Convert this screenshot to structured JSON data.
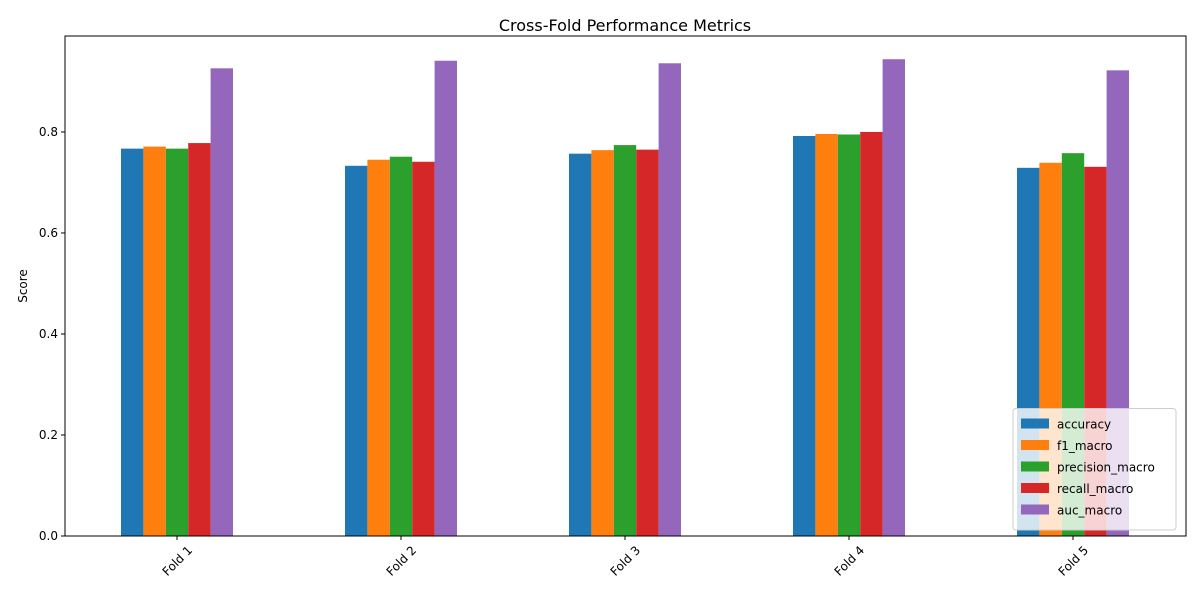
{
  "chart_data": {
    "type": "bar",
    "title": "Cross-Fold Performance Metrics",
    "xlabel": "",
    "ylabel": "Score",
    "categories": [
      "Fold 1",
      "Fold 2",
      "Fold 3",
      "Fold 4",
      "Fold 5"
    ],
    "ylim": [
      0,
      0.99
    ],
    "yticks": [
      0.0,
      0.2,
      0.4,
      0.6,
      0.8
    ],
    "ytick_labels": [
      "0.0",
      "0.2",
      "0.4",
      "0.6",
      "0.8"
    ],
    "grid": false,
    "legend_position": "bottom-right",
    "series": [
      {
        "name": "accuracy",
        "color": "#1f77b4",
        "values": [
          0.767,
          0.733,
          0.757,
          0.792,
          0.729
        ]
      },
      {
        "name": "f1_macro",
        "color": "#ff7f0e",
        "values": [
          0.771,
          0.745,
          0.764,
          0.796,
          0.739
        ]
      },
      {
        "name": "precision_macro",
        "color": "#2ca02c",
        "values": [
          0.767,
          0.751,
          0.774,
          0.795,
          0.758
        ]
      },
      {
        "name": "recall_macro",
        "color": "#d62728",
        "values": [
          0.778,
          0.741,
          0.765,
          0.8,
          0.731
        ]
      },
      {
        "name": "auc_macro",
        "color": "#9467bd",
        "values": [
          0.926,
          0.941,
          0.936,
          0.944,
          0.922
        ]
      }
    ]
  }
}
